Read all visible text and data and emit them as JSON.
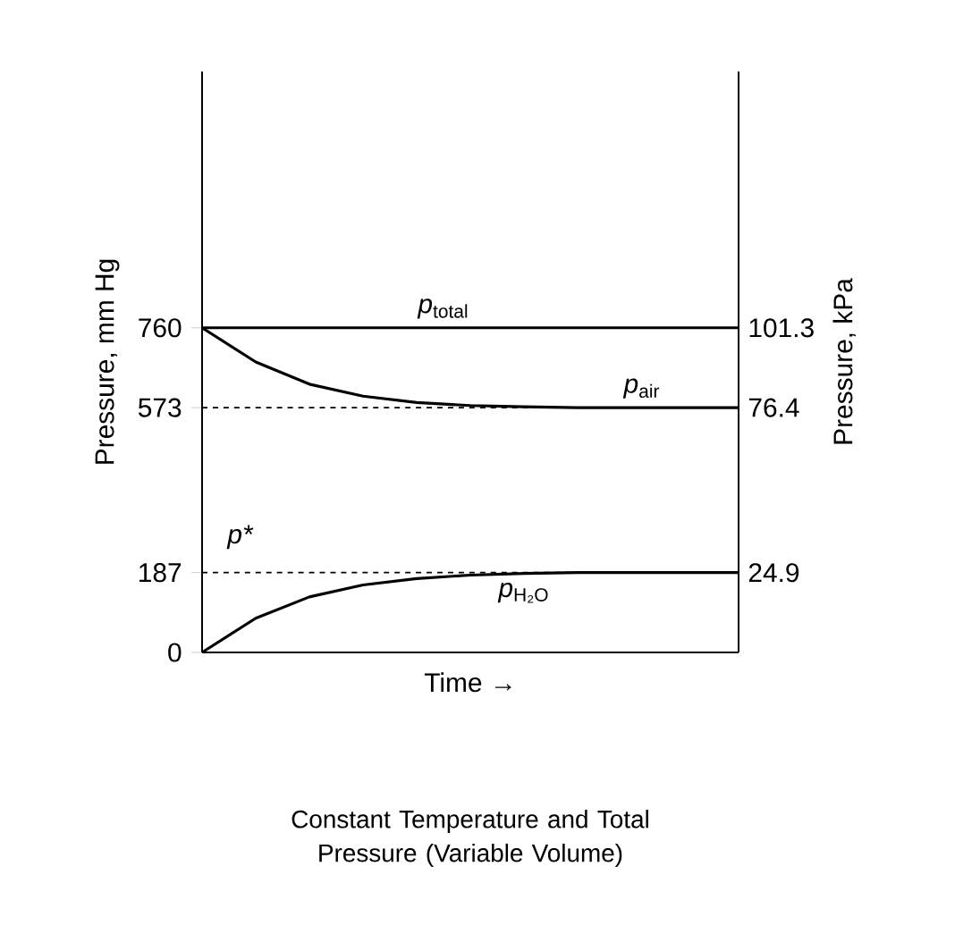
{
  "chart_data": {
    "type": "line",
    "xlabel": "Time →",
    "ylabel": "Pressure, mm Hg",
    "y2label": "Pressure, kPa",
    "categories": [
      null,
      null,
      null,
      null,
      null,
      null,
      null,
      null,
      null,
      null,
      null
    ],
    "series": [
      {
        "name": "*p*$_{total}$",
        "color": "#000000",
        "values": [
          760,
          760,
          760,
          760,
          760,
          760,
          760,
          760,
          760,
          760,
          760
        ]
      },
      {
        "name": "*p*$_{air}$",
        "color": "#000000",
        "values": [
          760,
          680,
          628,
          600,
          585,
          578,
          575,
          573,
          573,
          573,
          573
        ]
      },
      {
        "name": "*p*$_{H₂O}$",
        "color": "#000000",
        "values": [
          0,
          80,
          130,
          158,
          173,
          181,
          185,
          187,
          187,
          187,
          187
        ]
      }
    ],
    "ylim": [
      0,
      1360
    ],
    "yticks": [
      0,
      187,
      573,
      760
    ],
    "y2lim": [
      0,
      181.3
    ],
    "y2ticks": [
      24.9,
      76.4,
      101.3
    ],
    "ref_lines": [
      {
        "axis": "y",
        "value": 573,
        "line_style": "dashed",
        "color": "#000000"
      },
      {
        "axis": "y",
        "value": 187,
        "label": "p*",
        "line_style": "dashed",
        "color": "#000000"
      }
    ],
    "tick_labels": "y",
    "legend": false,
    "grid": false,
    "marker": "none",
    "line_style": "solid",
    "annotations": [
      "Constant Temperature and Total Pressure (Variable Volume)"
    ]
  }
}
